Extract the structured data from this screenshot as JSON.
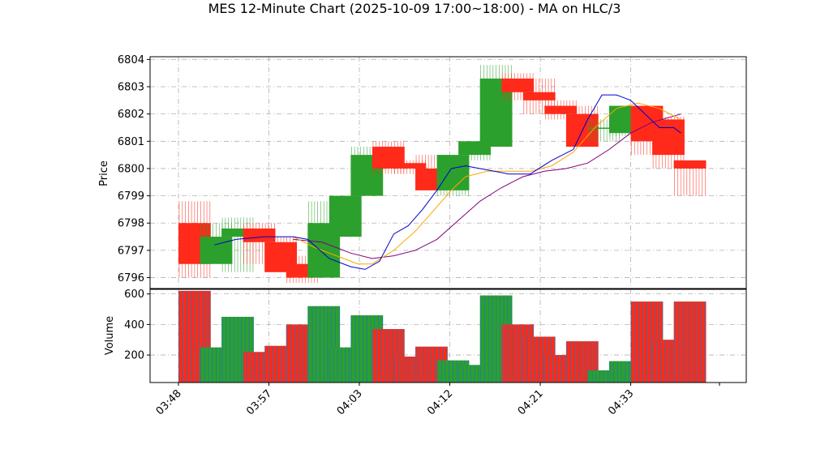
{
  "chart_data": {
    "type": "candlestick",
    "title": "MES 12-Minute Chart (2025-10-09 17:00~18:00) - MA on HLC/3",
    "price_panel": {
      "ylabel": "Price",
      "ylim": [
        6795.6,
        6804.1
      ],
      "yticks": [
        6796,
        6797,
        6798,
        6799,
        6800,
        6801,
        6802,
        6803,
        6804
      ],
      "grid": true
    },
    "volume_panel": {
      "ylabel": "Volume",
      "ylim": [
        20,
        630
      ],
      "yticks": [
        200,
        400,
        600
      ],
      "grid": true
    },
    "x_tick_labels": [
      "03:48",
      "03:57",
      "04:03",
      "04:12",
      "04:21",
      "04:33"
    ],
    "colors": {
      "up": "#2ca02c",
      "down": "#ff2a1a",
      "ma_fast": "#0000cc",
      "ma_mid": "#ffa500",
      "ma_slow": "#800080",
      "volume_edge": "#1f77b4"
    },
    "bars": [
      {
        "o": 6798.0,
        "h": 6798.8,
        "l": 6796.0,
        "c": 6796.5,
        "v": 620
      },
      {
        "o": 6796.5,
        "h": 6798.0,
        "l": 6796.5,
        "c": 6797.5,
        "v": 250
      },
      {
        "o": 6797.5,
        "h": 6798.2,
        "l": 6796.2,
        "c": 6797.8,
        "v": 450
      },
      {
        "o": 6797.8,
        "h": 6798.0,
        "l": 6796.5,
        "c": 6797.3,
        "v": 220
      },
      {
        "o": 6797.3,
        "h": 6797.5,
        "l": 6796.2,
        "c": 6796.2,
        "v": 260
      },
      {
        "o": 6796.5,
        "h": 6796.8,
        "l": 6795.8,
        "c": 6796.0,
        "v": 400
      },
      {
        "o": 6796.0,
        "h": 6798.8,
        "l": 6796.0,
        "c": 6798.0,
        "v": 520
      },
      {
        "o": 6797.5,
        "h": 6799.0,
        "l": 6797.5,
        "c": 6799.0,
        "v": 250
      },
      {
        "o": 6799.0,
        "h": 6800.8,
        "l": 6799.0,
        "c": 6800.5,
        "v": 460
      },
      {
        "o": 6800.8,
        "h": 6801.0,
        "l": 6799.8,
        "c": 6800.0,
        "v": 370
      },
      {
        "o": 6800.2,
        "h": 6800.3,
        "l": 6799.8,
        "c": 6800.0,
        "v": 190
      },
      {
        "o": 6800.0,
        "h": 6800.5,
        "l": 6799.2,
        "c": 6799.2,
        "v": 255
      },
      {
        "o": 6799.2,
        "h": 6800.5,
        "l": 6799.0,
        "c": 6800.5,
        "v": 165
      },
      {
        "o": 6800.5,
        "h": 6801.0,
        "l": 6800.3,
        "c": 6801.0,
        "v": 135
      },
      {
        "o": 6800.8,
        "h": 6803.8,
        "l": 6800.8,
        "c": 6803.3,
        "v": 590
      },
      {
        "o": 6803.3,
        "h": 6803.5,
        "l": 6802.5,
        "c": 6802.8,
        "v": 400
      },
      {
        "o": 6802.8,
        "h": 6803.3,
        "l": 6802.0,
        "c": 6802.5,
        "v": 320
      },
      {
        "o": 6802.3,
        "h": 6802.5,
        "l": 6801.8,
        "c": 6802.0,
        "v": 200
      },
      {
        "o": 6802.0,
        "h": 6802.3,
        "l": 6800.8,
        "c": 6800.8,
        "v": 290
      },
      {
        "o": 6801.5,
        "h": 6801.8,
        "l": 6801.0,
        "c": 6801.5,
        "v": 100
      },
      {
        "o": 6801.3,
        "h": 6802.3,
        "l": 6801.2,
        "c": 6802.3,
        "v": 160
      },
      {
        "o": 6802.3,
        "h": 6802.3,
        "l": 6800.5,
        "c": 6801.0,
        "v": 550
      },
      {
        "o": 6801.8,
        "h": 6801.9,
        "l": 6800.0,
        "c": 6800.5,
        "v": 300
      },
      {
        "o": 6800.3,
        "h": 6800.3,
        "l": 6799.0,
        "c": 6800.0,
        "v": 550
      }
    ],
    "ma_fast": [
      {
        "x": 2.5,
        "y": 6797.2
      },
      {
        "x": 4,
        "y": 6797.4
      },
      {
        "x": 6,
        "y": 6797.5
      },
      {
        "x": 8,
        "y": 6797.5
      },
      {
        "x": 9,
        "y": 6797.4
      },
      {
        "x": 10.5,
        "y": 6796.7
      },
      {
        "x": 12,
        "y": 6796.4
      },
      {
        "x": 13,
        "y": 6796.3
      },
      {
        "x": 14,
        "y": 6796.6
      },
      {
        "x": 15,
        "y": 6797.6
      },
      {
        "x": 16,
        "y": 6797.9
      },
      {
        "x": 17,
        "y": 6798.5
      },
      {
        "x": 18,
        "y": 6799.2
      },
      {
        "x": 19,
        "y": 6800.0
      },
      {
        "x": 20,
        "y": 6800.1
      },
      {
        "x": 21,
        "y": 6800.0
      },
      {
        "x": 22,
        "y": 6799.9
      },
      {
        "x": 23,
        "y": 6799.8
      },
      {
        "x": 24.5,
        "y": 6799.8
      },
      {
        "x": 26,
        "y": 6800.3
      },
      {
        "x": 27.5,
        "y": 6800.7
      },
      {
        "x": 28.5,
        "y": 6801.8
      },
      {
        "x": 29.5,
        "y": 6802.7
      },
      {
        "x": 30.5,
        "y": 6802.7
      },
      {
        "x": 31.5,
        "y": 6802.5
      },
      {
        "x": 32.5,
        "y": 6802.0
      },
      {
        "x": 33.5,
        "y": 6801.5
      },
      {
        "x": 34.5,
        "y": 6801.5
      },
      {
        "x": 35,
        "y": 6801.3
      }
    ],
    "ma_mid": [
      {
        "x": 8,
        "y": 6797.5
      },
      {
        "x": 9.5,
        "y": 6797.1
      },
      {
        "x": 11,
        "y": 6796.8
      },
      {
        "x": 12.5,
        "y": 6796.5
      },
      {
        "x": 13.5,
        "y": 6796.5
      },
      {
        "x": 15,
        "y": 6797.0
      },
      {
        "x": 16.5,
        "y": 6797.7
      },
      {
        "x": 17.5,
        "y": 6798.3
      },
      {
        "x": 19,
        "y": 6799.2
      },
      {
        "x": 20,
        "y": 6799.7
      },
      {
        "x": 21.5,
        "y": 6799.9
      },
      {
        "x": 23,
        "y": 6799.9
      },
      {
        "x": 24.5,
        "y": 6799.9
      },
      {
        "x": 26,
        "y": 6800.1
      },
      {
        "x": 27.5,
        "y": 6800.6
      },
      {
        "x": 29,
        "y": 6801.5
      },
      {
        "x": 30.5,
        "y": 6802.2
      },
      {
        "x": 32,
        "y": 6802.4
      },
      {
        "x": 33.5,
        "y": 6802.2
      },
      {
        "x": 35,
        "y": 6801.8
      }
    ],
    "ma_slow": [
      {
        "x": 8,
        "y": 6797.4
      },
      {
        "x": 10,
        "y": 6797.3
      },
      {
        "x": 12,
        "y": 6796.9
      },
      {
        "x": 13.5,
        "y": 6796.7
      },
      {
        "x": 15,
        "y": 6796.8
      },
      {
        "x": 16.5,
        "y": 6797.0
      },
      {
        "x": 18,
        "y": 6797.4
      },
      {
        "x": 19.5,
        "y": 6798.1
      },
      {
        "x": 21,
        "y": 6798.8
      },
      {
        "x": 22.5,
        "y": 6799.3
      },
      {
        "x": 24,
        "y": 6799.7
      },
      {
        "x": 25.5,
        "y": 6799.9
      },
      {
        "x": 27,
        "y": 6800.0
      },
      {
        "x": 28.5,
        "y": 6800.2
      },
      {
        "x": 30,
        "y": 6800.7
      },
      {
        "x": 31.5,
        "y": 6801.3
      },
      {
        "x": 33,
        "y": 6801.7
      },
      {
        "x": 35,
        "y": 6802.0
      }
    ]
  }
}
